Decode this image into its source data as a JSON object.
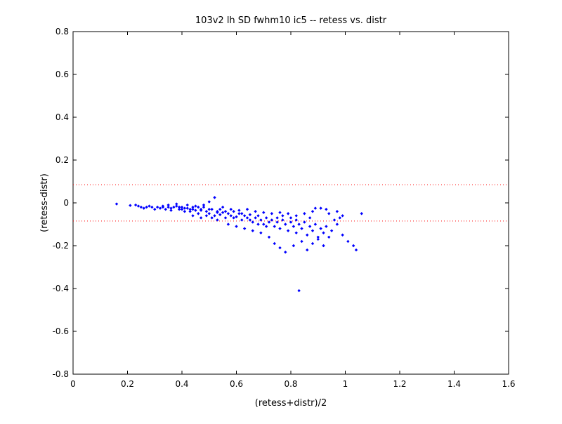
{
  "chart_data": {
    "type": "scatter",
    "title": "103v2 lh SD fwhm10 ic5 -- retess vs. distr",
    "xlabel": "(retess+distr)/2",
    "ylabel": "(retess-distr)",
    "xlim": [
      0,
      1.6
    ],
    "ylim": [
      -0.8,
      0.8
    ],
    "xticks": [
      "0",
      "0.2",
      "0.4",
      "0.6",
      "0.8",
      "1",
      "1.2",
      "1.4",
      "1.6"
    ],
    "yticks": [
      "-0.8",
      "-0.6",
      "-0.4",
      "-0.2",
      "0",
      "0.2",
      "0.4",
      "0.6",
      "0.8"
    ],
    "grid": false,
    "marker_color": "#0000ff",
    "reference_line_color": "#ff0000",
    "reference_lines_y": [
      0.085,
      -0.085
    ],
    "points": [
      [
        0.16,
        -0.005
      ],
      [
        0.21,
        -0.012
      ],
      [
        0.23,
        -0.01
      ],
      [
        0.24,
        -0.015
      ],
      [
        0.25,
        -0.02
      ],
      [
        0.26,
        -0.025
      ],
      [
        0.27,
        -0.02
      ],
      [
        0.28,
        -0.015
      ],
      [
        0.29,
        -0.02
      ],
      [
        0.3,
        -0.03
      ],
      [
        0.31,
        -0.02
      ],
      [
        0.32,
        -0.025
      ],
      [
        0.33,
        -0.015
      ],
      [
        0.34,
        -0.03
      ],
      [
        0.35,
        -0.02
      ],
      [
        0.36,
        -0.035
      ],
      [
        0.37,
        -0.02
      ],
      [
        0.38,
        -0.015
      ],
      [
        0.39,
        -0.03
      ],
      [
        0.4,
        -0.02
      ],
      [
        0.41,
        -0.04
      ],
      [
        0.42,
        -0.025
      ],
      [
        0.43,
        -0.03
      ],
      [
        0.44,
        -0.02
      ],
      [
        0.45,
        -0.035
      ],
      [
        0.46,
        -0.05
      ],
      [
        0.47,
        -0.03
      ],
      [
        0.48,
        -0.02
      ],
      [
        0.49,
        -0.04
      ],
      [
        0.5,
        -0.05
      ],
      [
        0.51,
        -0.03
      ],
      [
        0.52,
        -0.06
      ],
      [
        0.53,
        -0.04
      ],
      [
        0.54,
        -0.055
      ],
      [
        0.55,
        -0.045
      ],
      [
        0.56,
        -0.07
      ],
      [
        0.57,
        -0.05
      ],
      [
        0.58,
        -0.06
      ],
      [
        0.59,
        -0.04
      ],
      [
        0.6,
        -0.065
      ],
      [
        0.61,
        -0.05
      ],
      [
        0.62,
        -0.08
      ],
      [
        0.63,
        -0.06
      ],
      [
        0.64,
        -0.07
      ],
      [
        0.65,
        -0.055
      ],
      [
        0.66,
        -0.09
      ],
      [
        0.67,
        -0.07
      ],
      [
        0.68,
        -0.06
      ],
      [
        0.69,
        -0.08
      ],
      [
        0.7,
        -0.1
      ],
      [
        0.71,
        -0.07
      ],
      [
        0.72,
        -0.09
      ],
      [
        0.73,
        -0.08
      ],
      [
        0.74,
        -0.11
      ],
      [
        0.75,
        -0.09
      ],
      [
        0.76,
        -0.12
      ],
      [
        0.77,
        -0.08
      ],
      [
        0.78,
        -0.1
      ],
      [
        0.79,
        -0.13
      ],
      [
        0.8,
        -0.09
      ],
      [
        0.81,
        -0.11
      ],
      [
        0.82,
        -0.14
      ],
      [
        0.83,
        -0.1
      ],
      [
        0.84,
        -0.12
      ],
      [
        0.85,
        -0.09
      ],
      [
        0.86,
        -0.15
      ],
      [
        0.87,
        -0.11
      ],
      [
        0.88,
        -0.13
      ],
      [
        0.89,
        -0.1
      ],
      [
        0.9,
        -0.16
      ],
      [
        0.91,
        -0.12
      ],
      [
        0.92,
        -0.14
      ],
      [
        0.93,
        -0.11
      ],
      [
        0.95,
        -0.13
      ],
      [
        0.97,
        -0.1
      ],
      [
        0.99,
        -0.15
      ],
      [
        1.01,
        -0.18
      ],
      [
        1.03,
        -0.2
      ],
      [
        1.04,
        -0.22
      ],
      [
        1.06,
        -0.05
      ],
      [
        0.35,
        -0.01
      ],
      [
        0.38,
        -0.005
      ],
      [
        0.42,
        -0.01
      ],
      [
        0.45,
        -0.015
      ],
      [
        0.48,
        -0.01
      ],
      [
        0.5,
        0.005
      ],
      [
        0.52,
        0.025
      ],
      [
        0.55,
        -0.02
      ],
      [
        0.58,
        -0.03
      ],
      [
        0.61,
        -0.035
      ],
      [
        0.64,
        -0.03
      ],
      [
        0.67,
        -0.04
      ],
      [
        0.7,
        -0.045
      ],
      [
        0.73,
        -0.05
      ],
      [
        0.76,
        -0.045
      ],
      [
        0.79,
        -0.05
      ],
      [
        0.82,
        -0.06
      ],
      [
        0.85,
        -0.05
      ],
      [
        0.88,
        -0.04
      ],
      [
        0.91,
        -0.025
      ],
      [
        0.94,
        -0.05
      ],
      [
        0.97,
        -0.04
      ],
      [
        0.99,
        -0.06
      ],
      [
        0.44,
        -0.06
      ],
      [
        0.47,
        -0.07
      ],
      [
        0.53,
        -0.08
      ],
      [
        0.57,
        -0.1
      ],
      [
        0.6,
        -0.11
      ],
      [
        0.63,
        -0.12
      ],
      [
        0.66,
        -0.13
      ],
      [
        0.69,
        -0.14
      ],
      [
        0.72,
        -0.16
      ],
      [
        0.74,
        -0.19
      ],
      [
        0.76,
        -0.21
      ],
      [
        0.78,
        -0.23
      ],
      [
        0.81,
        -0.2
      ],
      [
        0.83,
        -0.41
      ],
      [
        0.84,
        -0.18
      ],
      [
        0.86,
        -0.22
      ],
      [
        0.88,
        -0.19
      ],
      [
        0.9,
        -0.17
      ],
      [
        0.92,
        -0.2
      ],
      [
        0.89,
        -0.025
      ],
      [
        0.93,
        -0.03
      ],
      [
        0.96,
        -0.08
      ],
      [
        0.98,
        -0.07
      ],
      [
        0.94,
        -0.16
      ],
      [
        0.4,
        -0.03
      ],
      [
        0.43,
        -0.04
      ],
      [
        0.46,
        -0.02
      ],
      [
        0.49,
        -0.06
      ],
      [
        0.51,
        -0.07
      ],
      [
        0.54,
        -0.03
      ],
      [
        0.56,
        -0.04
      ],
      [
        0.59,
        -0.07
      ],
      [
        0.62,
        -0.05
      ],
      [
        0.65,
        -0.08
      ],
      [
        0.68,
        -0.1
      ],
      [
        0.71,
        -0.11
      ],
      [
        0.75,
        -0.07
      ],
      [
        0.77,
        -0.06
      ],
      [
        0.8,
        -0.07
      ],
      [
        0.82,
        -0.08
      ],
      [
        0.87,
        -0.07
      ],
      [
        0.33,
        -0.02
      ],
      [
        0.36,
        -0.025
      ],
      [
        0.39,
        -0.02
      ],
      [
        0.41,
        -0.025
      ],
      [
        0.44,
        -0.03
      ],
      [
        0.47,
        -0.035
      ],
      [
        0.5,
        -0.03
      ],
      [
        0.53,
        -0.045
      ]
    ]
  }
}
